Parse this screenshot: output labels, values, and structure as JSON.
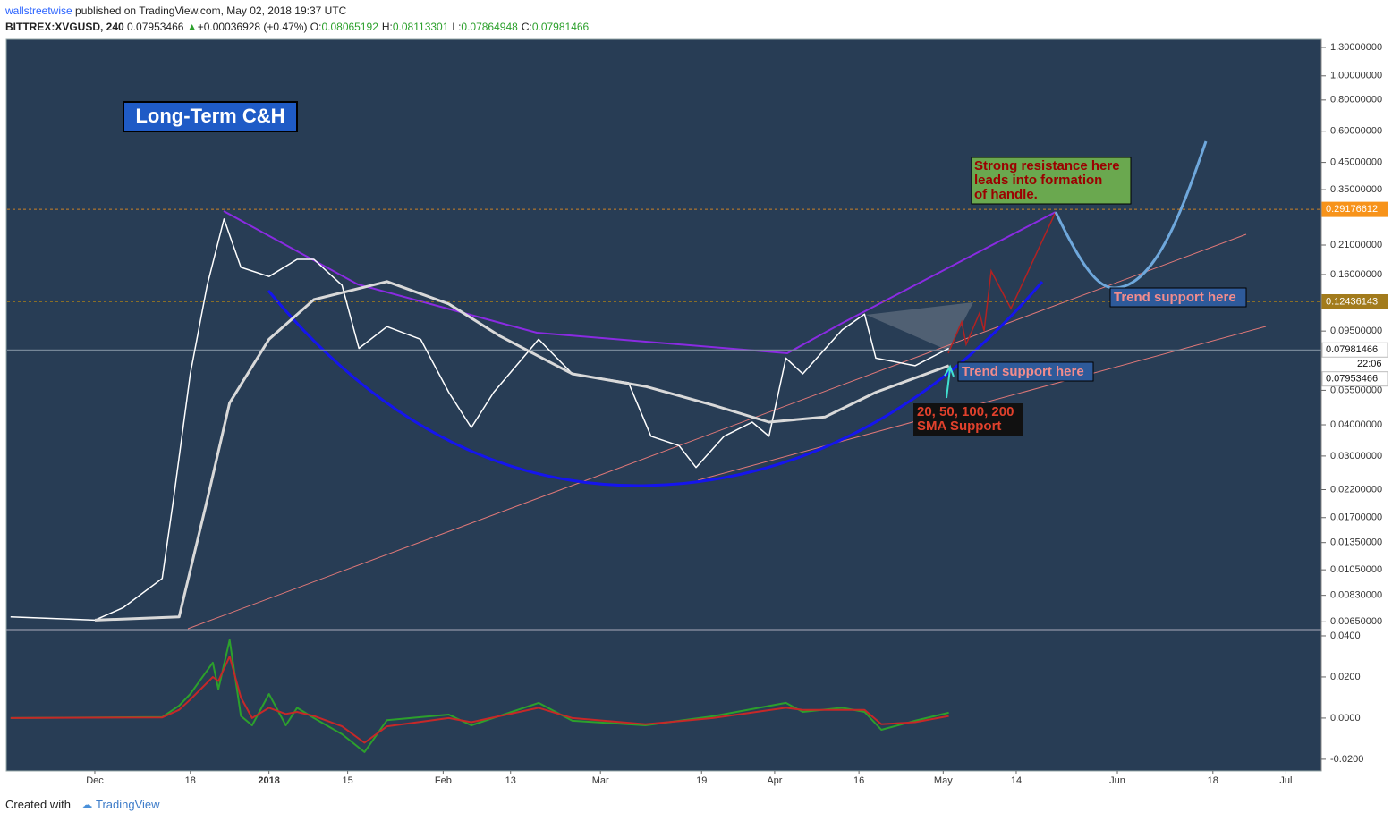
{
  "header": {
    "author": "wallstreetwise",
    "published": " published on TradingView.com, May 02, 2018 19:37 UTC",
    "symbol": "BITTREX:XVGUSD, 240",
    "last": 0.07953466,
    "change": "+0.00036928 (+0.47%)",
    "ohlc": [
      {
        "name": "O:",
        "price": 0.08065192
      },
      {
        "name": "H:",
        "price": 0.08113301
      },
      {
        "name": "L:",
        "price": 0.07864948
      },
      {
        "name": "C:",
        "price": 0.07981466
      }
    ]
  },
  "footer": {
    "created": "Created with",
    "brand": "TradingView"
  },
  "chart_data": [
    {
      "type": "line",
      "log_scale": true,
      "grid": false,
      "annotations": {
        "title": "Long-Term C&H",
        "resistance": [
          "Strong resistance here",
          "leads into formation",
          " of handle."
        ],
        "support_upper": "Trend support here",
        "support_lower": "Trend support here",
        "sma": [
          "20, 50, 100, 200",
          "SMA Support"
        ]
      },
      "xlim": [
        -15.6,
        218.3
      ],
      "xticks": [
        {
          "value": 0,
          "label": "Dec"
        },
        {
          "value": 17,
          "label": "18"
        },
        {
          "value": 31,
          "label": "2018"
        },
        {
          "value": 45,
          "label": "15"
        },
        {
          "value": 62,
          "label": "Feb"
        },
        {
          "value": 74,
          "label": "13"
        },
        {
          "value": 90,
          "label": "Mar"
        },
        {
          "value": 108,
          "label": "19"
        },
        {
          "value": 121,
          "label": "Apr"
        },
        {
          "value": 136,
          "label": "16"
        },
        {
          "value": 151,
          "label": "May"
        },
        {
          "value": 164,
          "label": "14"
        },
        {
          "value": 182,
          "label": "Jun"
        },
        {
          "value": 199,
          "label": "18"
        },
        {
          "value": 212,
          "label": "Jul"
        }
      ],
      "ylim": [
        0.0061,
        1.4
      ],
      "yticks": [
        {
          "value": 1.3,
          "label": "1.30000000"
        },
        {
          "value": 1.0,
          "label": "1.00000000"
        },
        {
          "value": 0.8,
          "label": "0.80000000"
        },
        {
          "value": 0.6,
          "label": "0.60000000"
        },
        {
          "value": 0.45,
          "label": "0.45000000"
        },
        {
          "value": 0.35,
          "label": "0.35000000"
        },
        {
          "value": 0.21,
          "label": "0.21000000"
        },
        {
          "value": 0.16,
          "label": "0.16000000"
        },
        {
          "value": 0.095,
          "label": "0.09500000"
        },
        {
          "value": 0.055,
          "label": "0.05500000"
        },
        {
          "value": 0.04,
          "label": "0.04000000"
        },
        {
          "value": 0.03,
          "label": "0.03000000"
        },
        {
          "value": 0.022,
          "label": "0.02200000"
        },
        {
          "value": 0.017,
          "label": "0.01700000"
        },
        {
          "value": 0.0135,
          "label": "0.01350000"
        },
        {
          "value": 0.0105,
          "label": "0.01050000"
        },
        {
          "value": 0.0083,
          "label": "0.00830000"
        },
        {
          "value": 0.0065,
          "label": "0.00650000"
        }
      ],
      "price_lines": [
        {
          "price": 0.29176612,
          "color": "#f7931a"
        },
        {
          "price": 0.12436143,
          "color": "#a27b1c"
        },
        {
          "price": 0.07981466,
          "color": "#ffffff"
        },
        {
          "price": 0.07953466,
          "color": "#ffffff"
        }
      ],
      "countdown": "22:06",
      "series": [
        {
          "color": "#ffffff",
          "width": 1.5,
          "x": [
            -15,
            0,
            5,
            12,
            14,
            17,
            20,
            23,
            26,
            31,
            36,
            39,
            44,
            47,
            52,
            58,
            63,
            67,
            71,
            79,
            85,
            95,
            99,
            104,
            107,
            112,
            117,
            120,
            123,
            126,
            133,
            137,
            139,
            146,
            152
          ],
          "values": [
            0.0068,
            0.0066,
            0.0074,
            0.0097,
            0.0201,
            0.064,
            0.145,
            0.267,
            0.171,
            0.157,
            0.184,
            0.184,
            0.145,
            0.081,
            0.099,
            0.088,
            0.054,
            0.039,
            0.054,
            0.088,
            0.064,
            0.059,
            0.036,
            0.033,
            0.027,
            0.036,
            0.041,
            0.036,
            0.074,
            0.064,
            0.096,
            0.111,
            0.074,
            0.069,
            0.081
          ]
        },
        {
          "color": "#d9d9d9",
          "width": 3,
          "x": [
            0,
            15,
            20,
            24,
            31,
            39,
            52,
            63,
            72,
            85,
            98,
            110,
            120,
            130,
            139,
            152
          ],
          "values": [
            0.0066,
            0.0068,
            0.02,
            0.049,
            0.088,
            0.127,
            0.15,
            0.122,
            0.091,
            0.064,
            0.057,
            0.048,
            0.041,
            0.043,
            0.054,
            0.069
          ]
        }
      ]
    },
    {
      "type": "line",
      "log_scale": false,
      "grid": false,
      "xlim": [
        -15.6,
        218.3
      ],
      "ylim": [
        -0.0257,
        0.0426
      ],
      "yticks": [
        {
          "value": 0.04,
          "label": "0.0400"
        },
        {
          "value": 0.02,
          "label": "0.0200"
        },
        {
          "value": 0,
          "label": "0.0000"
        },
        {
          "value": -0.02,
          "label": "-0.0200"
        }
      ],
      "series": [
        {
          "color": "#2ca02c",
          "width": 2,
          "x": [
            -15,
            12,
            15,
            17,
            21,
            22,
            24,
            26,
            28,
            31,
            34,
            36,
            39,
            44,
            48,
            52,
            63,
            67,
            79,
            85,
            98,
            110,
            123,
            126,
            133,
            137,
            140,
            146,
            152
          ],
          "values": [
            0,
            0.0005,
            0.006,
            0.0117,
            0.027,
            0.014,
            0.038,
            0.001,
            -0.0035,
            0.0117,
            -0.0035,
            0.005,
            0,
            -0.0078,
            -0.0165,
            -0.001,
            0.0017,
            -0.0035,
            0.0074,
            -0.0013,
            -0.0035,
            0.0009,
            0.0074,
            0.003,
            0.005,
            0.003,
            -0.0057,
            -0.0013,
            0.0026
          ]
        },
        {
          "color": "#c62828",
          "width": 2,
          "x": [
            -15,
            12,
            15,
            17,
            21,
            22,
            24,
            26,
            28,
            31,
            34,
            36,
            39,
            44,
            48,
            52,
            63,
            67,
            79,
            85,
            98,
            110,
            123,
            126,
            133,
            137,
            140,
            146,
            152
          ],
          "values": [
            0,
            0.0003,
            0.004,
            0.009,
            0.02,
            0.018,
            0.03,
            0.01,
            0,
            0.005,
            0.002,
            0.003,
            0.001,
            -0.004,
            -0.012,
            -0.004,
            0,
            -0.002,
            0.005,
            0,
            -0.003,
            0,
            0.005,
            0.004,
            0.004,
            0.004,
            -0.003,
            -0.002,
            0.001
          ]
        }
      ]
    }
  ]
}
